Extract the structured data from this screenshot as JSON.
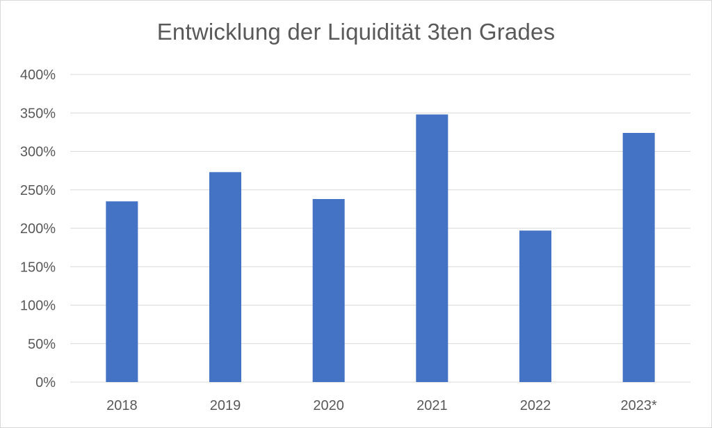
{
  "chart_data": {
    "type": "bar",
    "title": "Entwicklung der Liquidität 3ten Grades",
    "xlabel": "",
    "ylabel": "",
    "categories": [
      "2018",
      "2019",
      "2020",
      "2021",
      "2022",
      "2023*"
    ],
    "values": [
      2.35,
      2.73,
      2.38,
      3.48,
      1.97,
      3.24
    ],
    "ylim": [
      0,
      4
    ],
    "ytick_values": [
      0,
      0.5,
      1,
      1.5,
      2,
      2.5,
      3,
      3.5,
      4
    ],
    "ytick_labels": [
      "0%",
      "50%",
      "100%",
      "150%",
      "200%",
      "250%",
      "300%",
      "350%",
      "400%"
    ],
    "grid": true,
    "legend": "none",
    "bar_color": "#4472c4",
    "grid_color": "#d9d9d9"
  }
}
